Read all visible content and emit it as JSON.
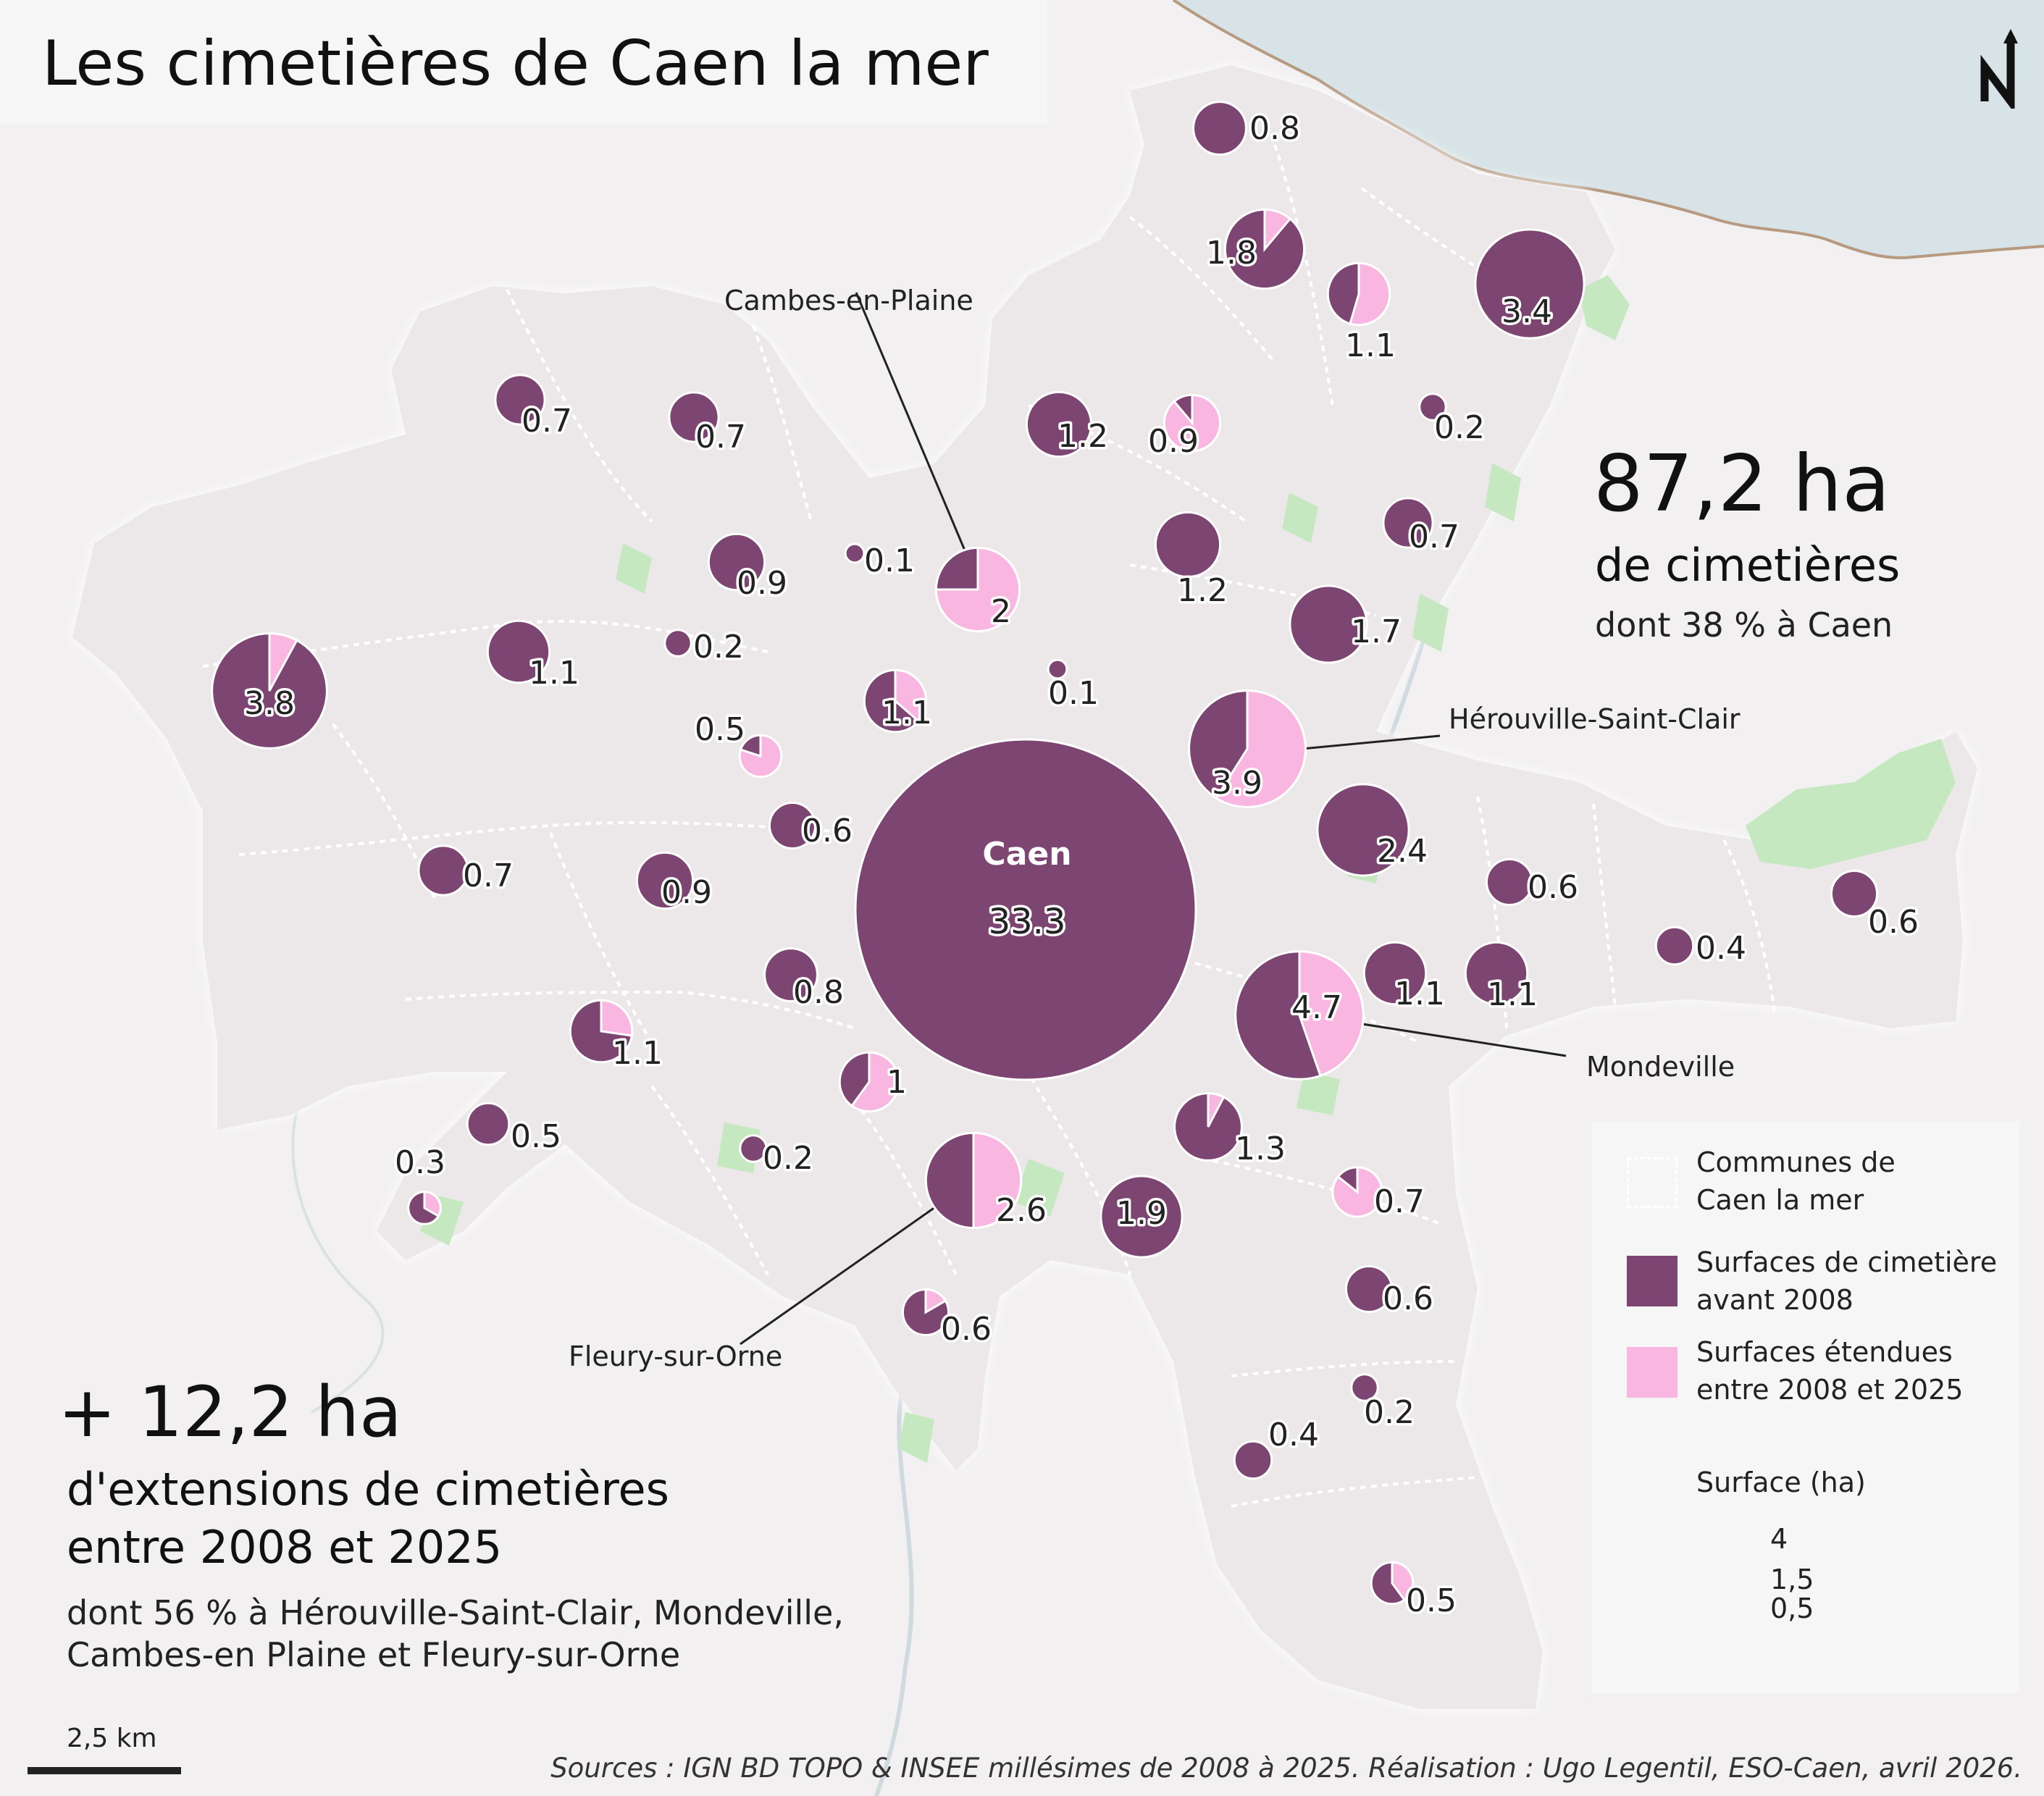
{
  "title": "Les cimetières de Caen la mer",
  "stats": {
    "total_value": "87,2 ha",
    "total_label": "de cimetières",
    "total_note": "dont 38 % à Caen",
    "ext_value": "+ 12,2 ha",
    "ext_label_1": "d'extensions de cimetières",
    "ext_label_2": "entre 2008 et 2025",
    "ext_note_1": "dont 56 % à Hérouville-Saint-Clair, Mondeville,",
    "ext_note_2": "Cambes-en Plaine et Fleury-sur-Orne"
  },
  "legend": {
    "communes_1": "Communes de",
    "communes_2": "Caen la mer",
    "before_1": "Surfaces de cimetière",
    "before_2": "avant 2008",
    "ext_1": "Surfaces étendues",
    "ext_2": "entre 2008 et 2025",
    "size_title": "Surface (ha)",
    "size_values": [
      "4",
      "1,5",
      "0,5"
    ]
  },
  "colors": {
    "before": "#7d4572",
    "extension": "#f9b6e0",
    "land": "#ece8e9",
    "sea": "#d7e3e6",
    "green": "#c6e8c1",
    "background": "#f2f0f0"
  },
  "scale": {
    "label": "2,5 km"
  },
  "sources": "Sources : IGN BD TOPO & INSEE millésimes de 2008 à 2025. Réalisation : Ugo Legentil, ESO-Caen, avril 2026.",
  "north_symbol": "north-arrow-icon",
  "named_communes": {
    "cambes": "Cambes-en-Plaine",
    "herouville": "Hérouville-Saint-Clair",
    "mondeville": "Mondeville",
    "fleury": "Fleury-sur-Orne",
    "caen": "Caen"
  },
  "chart_data": {
    "type": "pie",
    "unit": "ha",
    "symbols": [
      {
        "label": "0.8",
        "total": 0.8,
        "extension": 0
      },
      {
        "label": "1.8",
        "total": 1.8,
        "extension": 0.2
      },
      {
        "label": "1.1",
        "total": 1.1,
        "extension": 0.6
      },
      {
        "label": "3.4",
        "total": 3.4,
        "extension": 0
      },
      {
        "label": "0.2",
        "total": 0.2,
        "extension": 0
      },
      {
        "label": "1.2",
        "total": 1.2,
        "extension": 0
      },
      {
        "label": "0.9",
        "total": 0.9,
        "extension": 0.8
      },
      {
        "label": "0.7",
        "total": 0.7,
        "extension": 0
      },
      {
        "label": "0.7",
        "total": 0.7,
        "extension": 0
      },
      {
        "label": "0.7",
        "total": 0.7,
        "extension": 0
      },
      {
        "label": "1.2",
        "total": 1.2,
        "extension": 0
      },
      {
        "label": "1.7",
        "total": 1.7,
        "extension": 0
      },
      {
        "label": "0.9",
        "total": 0.9,
        "extension": 0
      },
      {
        "label": "0.1",
        "total": 0.1,
        "extension": 0
      },
      {
        "label": "2",
        "total": 2,
        "extension": 1.5
      },
      {
        "label": "3.8",
        "total": 3.8,
        "extension": 0.3
      },
      {
        "label": "1.1",
        "total": 1.1,
        "extension": 0
      },
      {
        "label": "0.2",
        "total": 0.2,
        "extension": 0
      },
      {
        "label": "1.1",
        "total": 1.1,
        "extension": 0.4
      },
      {
        "label": "0.1",
        "total": 0.1,
        "extension": 0
      },
      {
        "label": "0.5",
        "total": 0.5,
        "extension": 0.4
      },
      {
        "label": "3.9",
        "total": 3.9,
        "extension": 2.3
      },
      {
        "label": "0.6",
        "total": 0.6,
        "extension": 0
      },
      {
        "label": "33.3",
        "total": 33.3,
        "extension": 0,
        "name": "Caen"
      },
      {
        "label": "2.4",
        "total": 2.4,
        "extension": 0
      },
      {
        "label": "0.6",
        "total": 0.6,
        "extension": 0
      },
      {
        "label": "0.6",
        "total": 0.6,
        "extension": 0
      },
      {
        "label": "0.4",
        "total": 0.4,
        "extension": 0
      },
      {
        "label": "0.7",
        "total": 0.7,
        "extension": 0
      },
      {
        "label": "0.9",
        "total": 0.9,
        "extension": 0
      },
      {
        "label": "0.8",
        "total": 0.8,
        "extension": 0
      },
      {
        "label": "1.1",
        "total": 1.1,
        "extension": 0
      },
      {
        "label": "1.1",
        "total": 1.1,
        "extension": 0
      },
      {
        "label": "4.7",
        "total": 4.7,
        "extension": 2.1
      },
      {
        "label": "1.1",
        "total": 1.1,
        "extension": 0.3
      },
      {
        "label": "1",
        "total": 1,
        "extension": 0.6
      },
      {
        "label": "0.5",
        "total": 0.5,
        "extension": 0
      },
      {
        "label": "1.3",
        "total": 1.3,
        "extension": 0.1
      },
      {
        "label": "0.3",
        "total": 0.3,
        "extension": 0.1
      },
      {
        "label": "0.2",
        "total": 0.2,
        "extension": 0
      },
      {
        "label": "2.6",
        "total": 2.6,
        "extension": 1.3
      },
      {
        "label": "1.9",
        "total": 1.9,
        "extension": 0
      },
      {
        "label": "0.7",
        "total": 0.7,
        "extension": 0.6
      },
      {
        "label": "0.6",
        "total": 0.6,
        "extension": 0
      },
      {
        "label": "0.6",
        "total": 0.6,
        "extension": 0.1
      },
      {
        "label": "0.2",
        "total": 0.2,
        "extension": 0
      },
      {
        "label": "0.4",
        "total": 0.4,
        "extension": 0
      },
      {
        "label": "0.5",
        "total": 0.5,
        "extension": 0.2
      }
    ]
  }
}
